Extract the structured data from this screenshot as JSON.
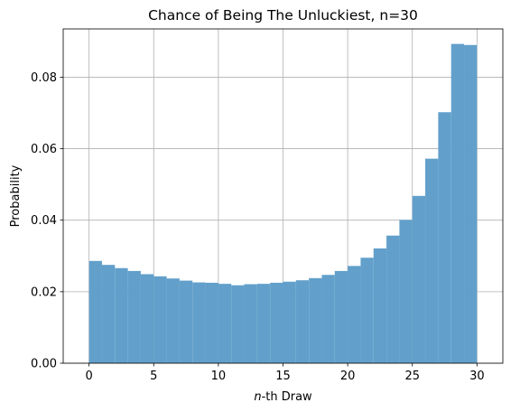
{
  "chart_data": {
    "type": "bar",
    "title": "Chance of Being The Unluckiest, n=30",
    "xlabel_italic": "n",
    "xlabel_rest": "-th Draw",
    "ylabel": "Probability",
    "xlim": [
      -2,
      32
    ],
    "ylim": [
      0,
      0.0935
    ],
    "grid": true,
    "bar_color": "#62a0cb",
    "bin_edges": [
      0,
      1,
      2,
      3,
      4,
      5,
      6,
      7,
      8,
      9,
      10,
      11,
      12,
      13,
      14,
      15,
      16,
      17,
      18,
      19,
      20,
      21,
      22,
      23,
      24,
      25,
      26,
      27,
      28,
      29,
      30
    ],
    "values": [
      0.0286,
      0.0275,
      0.0266,
      0.0258,
      0.0249,
      0.0243,
      0.0237,
      0.0231,
      0.0226,
      0.0225,
      0.0222,
      0.0218,
      0.0221,
      0.0222,
      0.0225,
      0.0228,
      0.0232,
      0.0238,
      0.0247,
      0.0258,
      0.0272,
      0.0295,
      0.0321,
      0.0357,
      0.0401,
      0.0468,
      0.0572,
      0.0702,
      0.0893,
      0.089
    ],
    "x_ticks": [
      {
        "value": 0,
        "label": "0"
      },
      {
        "value": 5,
        "label": "5"
      },
      {
        "value": 10,
        "label": "10"
      },
      {
        "value": 15,
        "label": "15"
      },
      {
        "value": 20,
        "label": "20"
      },
      {
        "value": 25,
        "label": "25"
      },
      {
        "value": 30,
        "label": "30"
      }
    ],
    "y_ticks": [
      {
        "value": 0,
        "label": "0.00"
      },
      {
        "value": 0.02,
        "label": "0.02"
      },
      {
        "value": 0.04,
        "label": "0.04"
      },
      {
        "value": 0.06,
        "label": "0.06"
      },
      {
        "value": 0.08,
        "label": "0.08"
      }
    ]
  }
}
